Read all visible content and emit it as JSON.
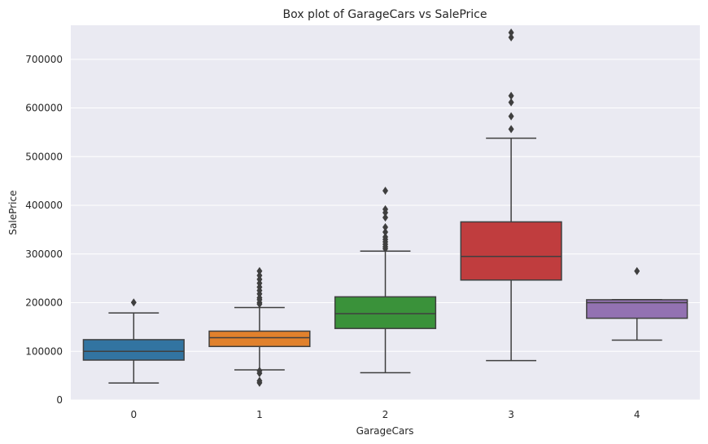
{
  "chart_data": {
    "type": "box",
    "title": "Box plot of GarageCars vs SalePrice",
    "xlabel": "GarageCars",
    "ylabel": "SalePrice",
    "ylim": [
      0,
      770000
    ],
    "yticks": [
      0,
      100000,
      200000,
      300000,
      400000,
      500000,
      600000,
      700000
    ],
    "ytick_labels": [
      "0",
      "100000",
      "200000",
      "300000",
      "400000",
      "500000",
      "600000",
      "700000"
    ],
    "grid": true,
    "categories": [
      "0",
      "1",
      "2",
      "3",
      "4"
    ],
    "boxes": [
      {
        "category": "0",
        "color": "#3274a1",
        "whisker_low": 34900,
        "q1": 82000,
        "median": 100000,
        "q3": 124000,
        "whisker_high": 179000,
        "outliers": [
          200500
        ]
      },
      {
        "category": "1",
        "color": "#e1812c",
        "whisker_low": 62000,
        "q1": 110000,
        "median": 128000,
        "q3": 141500,
        "whisker_high": 190000,
        "outliers": [
          35311,
          39300,
          55000,
          60000,
          197000,
          200000,
          206000,
          210000,
          218000,
          225000,
          232000,
          240000,
          248000,
          256000,
          265000
        ]
      },
      {
        "category": "2",
        "color": "#3a923a",
        "whisker_low": 55993,
        "q1": 147000,
        "median": 177500,
        "q3": 212000,
        "whisker_high": 306000,
        "outliers": [
          311000,
          315000,
          320000,
          325000,
          330000,
          335000,
          345000,
          355000,
          375000,
          385000,
          392000,
          430000
        ]
      },
      {
        "category": "3",
        "color": "#c03d3e",
        "whisker_low": 81000,
        "q1": 246500,
        "median": 295000,
        "q3": 366000,
        "whisker_high": 538000,
        "outliers": [
          556581,
          582933,
          611657,
          625000,
          745000,
          755000
        ]
      },
      {
        "category": "4",
        "color": "#9372b2",
        "whisker_low": 123000,
        "q1": 168000,
        "median": 200000,
        "q3": 206000,
        "whisker_high": 206300,
        "outliers": [
          265000
        ]
      }
    ]
  }
}
